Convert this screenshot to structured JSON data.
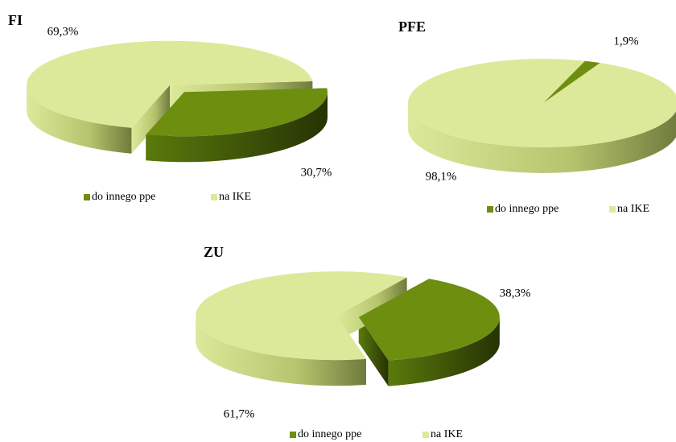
{
  "chart_data": [
    {
      "type": "pie",
      "title": "FI",
      "categories": [
        "do innego ppe",
        "na IKE"
      ],
      "values": [
        30.7,
        69.3
      ],
      "value_labels": [
        "30,7%",
        "69,3%"
      ],
      "colors": [
        "#6e8e10",
        "#dde99a"
      ],
      "startangle": -5,
      "exploded": true,
      "legend": "bottom"
    },
    {
      "type": "pie",
      "title": "PFE",
      "categories": [
        "do innego ppe",
        "na IKE"
      ],
      "values": [
        1.9,
        98.1
      ],
      "value_labels": [
        "1,9%",
        "98,1%"
      ],
      "colors": [
        "#6e8e10",
        "#dde99a"
      ],
      "startangle": -72,
      "exploded": false,
      "legend": "bottom"
    },
    {
      "type": "pie",
      "title": "ZU",
      "categories": [
        "do innego ppe",
        "na IKE"
      ],
      "values": [
        38.3,
        61.7
      ],
      "value_labels": [
        "38,3%",
        "61,7%"
      ],
      "colors": [
        "#6e8e10",
        "#dde99a"
      ],
      "startangle": -60,
      "exploded": true,
      "legend": "bottom"
    }
  ]
}
